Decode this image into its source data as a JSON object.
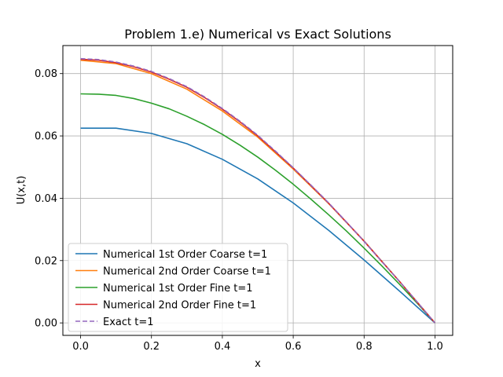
{
  "chart_data": {
    "type": "line",
    "title": "Problem 1.e) Numerical vs Exact Solutions",
    "xlabel": "x",
    "ylabel": "U(x,t)",
    "xlim": [
      -0.05,
      1.05
    ],
    "ylim": [
      -0.004,
      0.089
    ],
    "xticks": [
      0.0,
      0.2,
      0.4,
      0.6,
      0.8,
      1.0
    ],
    "xtick_labels": [
      "0.0",
      "0.2",
      "0.4",
      "0.6",
      "0.8",
      "1.0"
    ],
    "yticks": [
      0.0,
      0.02,
      0.04,
      0.06,
      0.08
    ],
    "ytick_labels": [
      "0.00",
      "0.02",
      "0.04",
      "0.06",
      "0.08"
    ],
    "grid": true,
    "legend_position": "lower-left",
    "series": [
      {
        "name": "Numerical 1st Order Coarse t=1",
        "color": "#1f77b4",
        "dash": "solid",
        "x": [
          0.0,
          0.1,
          0.2,
          0.3,
          0.4,
          0.5,
          0.6,
          0.7,
          0.8,
          0.9,
          1.0
        ],
        "y": [
          0.0625,
          0.0625,
          0.0608,
          0.0575,
          0.0525,
          0.0462,
          0.0385,
          0.0297,
          0.0202,
          0.0102,
          0.0
        ]
      },
      {
        "name": "Numerical 2nd Order Coarse t=1",
        "color": "#ff7f0e",
        "dash": "solid",
        "x": [
          0.0,
          0.1,
          0.2,
          0.3,
          0.4,
          0.5,
          0.6,
          0.7,
          0.8,
          0.9,
          1.0
        ],
        "y": [
          0.0843,
          0.0832,
          0.08,
          0.075,
          0.068,
          0.0596,
          0.0494,
          0.0383,
          0.0263,
          0.0133,
          0.0
        ]
      },
      {
        "name": "Numerical 1st Order Fine t=1",
        "color": "#2ca02c",
        "dash": "solid",
        "x": [
          0.0,
          0.05,
          0.1,
          0.15,
          0.2,
          0.25,
          0.3,
          0.35,
          0.4,
          0.45,
          0.5,
          0.55,
          0.6,
          0.65,
          0.7,
          0.75,
          0.8,
          0.85,
          0.9,
          0.95,
          1.0
        ],
        "y": [
          0.0735,
          0.0734,
          0.073,
          0.072,
          0.0705,
          0.0687,
          0.0663,
          0.0636,
          0.0605,
          0.057,
          0.0532,
          0.049,
          0.0445,
          0.0397,
          0.0347,
          0.0295,
          0.024,
          0.0183,
          0.0124,
          0.0063,
          0.0
        ]
      },
      {
        "name": "Numerical 2nd Order Fine t=1",
        "color": "#d62728",
        "dash": "solid",
        "x": [
          0.0,
          0.05,
          0.1,
          0.15,
          0.2,
          0.25,
          0.3,
          0.35,
          0.4,
          0.45,
          0.5,
          0.55,
          0.6,
          0.65,
          0.7,
          0.75,
          0.8,
          0.85,
          0.9,
          0.95,
          1.0
        ],
        "y": [
          0.0846,
          0.0843,
          0.0835,
          0.0822,
          0.0805,
          0.0782,
          0.0756,
          0.0723,
          0.0686,
          0.0645,
          0.06,
          0.0549,
          0.0497,
          0.0441,
          0.0384,
          0.0323,
          0.0262,
          0.0197,
          0.0133,
          0.0066,
          0.0
        ]
      },
      {
        "name": "Exact t=1",
        "color": "#9467bd",
        "dash": "dashed",
        "x": [
          0.0,
          0.05,
          0.1,
          0.15,
          0.2,
          0.25,
          0.3,
          0.35,
          0.4,
          0.45,
          0.5,
          0.55,
          0.6,
          0.65,
          0.7,
          0.75,
          0.8,
          0.85,
          0.9,
          0.95,
          1.0
        ],
        "y": [
          0.0848,
          0.0845,
          0.0837,
          0.0824,
          0.0807,
          0.0784,
          0.0758,
          0.0725,
          0.0688,
          0.0647,
          0.0602,
          0.0551,
          0.0498,
          0.0442,
          0.0385,
          0.0324,
          0.0262,
          0.0197,
          0.0133,
          0.0067,
          0.0
        ]
      }
    ]
  }
}
